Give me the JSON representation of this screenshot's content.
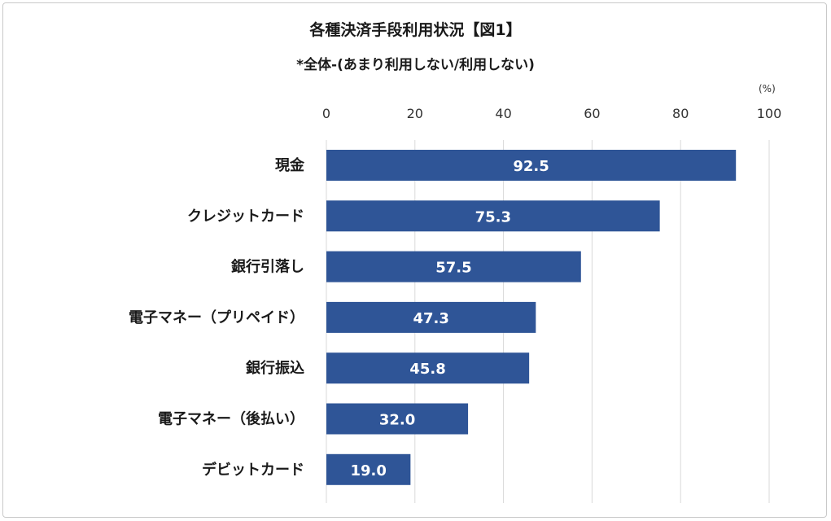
{
  "chart_data": {
    "type": "bar",
    "orientation": "horizontal",
    "title": "各種決済手段利用状況【図1】",
    "subtitle": "*全体-(あまり利用しない/利用しない)",
    "unit_label": "(%)",
    "xlim": [
      0,
      100
    ],
    "ticks": [
      0,
      20,
      40,
      60,
      80,
      100
    ],
    "categories": [
      "現金",
      "クレジットカード",
      "銀行引落し",
      "電子マネー（プリペイド）",
      "銀行振込",
      "電子マネー（後払い）",
      "デビットカード"
    ],
    "values": [
      92.5,
      75.3,
      57.5,
      47.3,
      45.8,
      32.0,
      19.0
    ],
    "value_labels": [
      "92.5",
      "75.3",
      "57.5",
      "47.3",
      "45.8",
      "32.0",
      "19.0"
    ],
    "bar_color": "#2f5597",
    "grid": true,
    "legend": "none"
  }
}
